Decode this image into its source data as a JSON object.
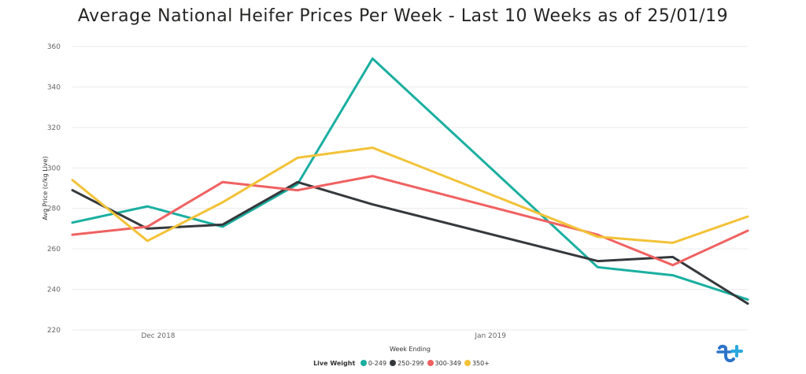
{
  "chart_data": {
    "type": "line",
    "title": "Average National Heifer Prices Per Week - Last 10 Weeks as of 25/01/19",
    "xlabel": "Week Ending",
    "ylabel": "Avg Price (c/kg Live)",
    "x": [
      "2018-11-23",
      "2018-11-30",
      "2018-12-07",
      "2018-12-14",
      "2018-12-21",
      "2018-12-28",
      "2019-01-04",
      "2019-01-11",
      "2019-01-18",
      "2019-01-25"
    ],
    "x_tick_labels": [
      "Dec 2018",
      "Jan 2019"
    ],
    "x_tick_positions": [
      "2018-12-01",
      "2019-01-01"
    ],
    "ylim": [
      220,
      360
    ],
    "yticks": [
      220,
      240,
      260,
      280,
      300,
      320,
      340,
      360
    ],
    "grid": true,
    "legend_title": "Live Weight",
    "legend_position": "bottom",
    "series": [
      {
        "name": "0-249",
        "color": "#1aafa0",
        "points": [
          [
            "2018-11-23",
            273
          ],
          [
            "2018-11-30",
            281
          ],
          [
            "2018-12-07",
            271
          ],
          [
            "2018-12-14",
            292
          ],
          [
            "2018-12-21",
            354
          ],
          [
            "2019-01-11",
            251
          ],
          [
            "2019-01-18",
            247
          ],
          [
            "2019-01-25",
            235
          ]
        ]
      },
      {
        "name": "250-299",
        "color": "#35393c",
        "points": [
          [
            "2018-11-23",
            289
          ],
          [
            "2018-11-30",
            270
          ],
          [
            "2018-12-07",
            272
          ],
          [
            "2018-12-14",
            293
          ],
          [
            "2018-12-21",
            282
          ],
          [
            "2019-01-11",
            254
          ],
          [
            "2019-01-18",
            256
          ],
          [
            "2019-01-25",
            233
          ]
        ]
      },
      {
        "name": "300-349",
        "color": "#f06161",
        "points": [
          [
            "2018-11-23",
            267
          ],
          [
            "2018-11-30",
            271
          ],
          [
            "2018-12-07",
            293
          ],
          [
            "2018-12-14",
            289
          ],
          [
            "2018-12-21",
            296
          ],
          [
            "2019-01-11",
            267
          ],
          [
            "2019-01-18",
            252
          ],
          [
            "2019-01-25",
            269
          ]
        ]
      },
      {
        "name": "350+",
        "color": "#f2c237",
        "points": [
          [
            "2018-11-23",
            294
          ],
          [
            "2018-11-30",
            264
          ],
          [
            "2018-12-07",
            283
          ],
          [
            "2018-12-14",
            305
          ],
          [
            "2018-12-21",
            310
          ],
          [
            "2019-01-11",
            266
          ],
          [
            "2019-01-18",
            263
          ],
          [
            "2019-01-25",
            276
          ]
        ]
      }
    ]
  },
  "logo": {
    "name": "logo-icon",
    "colors": [
      "#2c73c9",
      "#2aa7e0"
    ]
  }
}
